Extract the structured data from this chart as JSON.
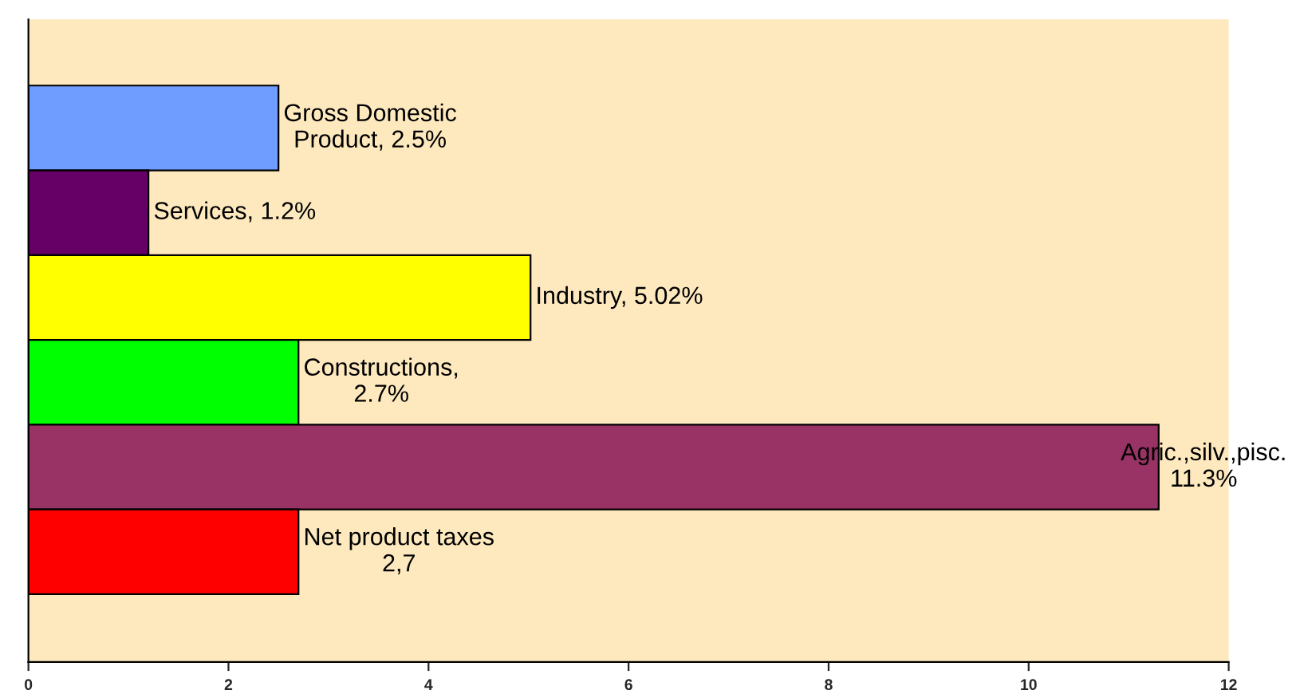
{
  "chart_data": {
    "type": "bar",
    "orientation": "horizontal",
    "categories": [
      null,
      null,
      null,
      null,
      null,
      null
    ],
    "values": [
      2.5,
      1.2,
      5.02,
      2.7,
      11.3,
      2.7
    ],
    "colors": [
      "#6f9cff",
      "#660066",
      "#ffff00",
      "#00ff00",
      "#993366",
      "#ff0000"
    ],
    "value_labels": [
      "Gross Domestic\nProduct, 2.5%",
      "Services, 1.2%",
      "Industry, 5.02%",
      "Constructions,\n2.7%",
      "Agric.,silv.,pisc.\n11.3%",
      "Net product taxes\n2,7"
    ],
    "xlim": [
      0,
      12
    ],
    "xticks": [
      0,
      2,
      4,
      6,
      8,
      10,
      12
    ],
    "tick_labels": "x",
    "grid": false,
    "legend": false
  }
}
